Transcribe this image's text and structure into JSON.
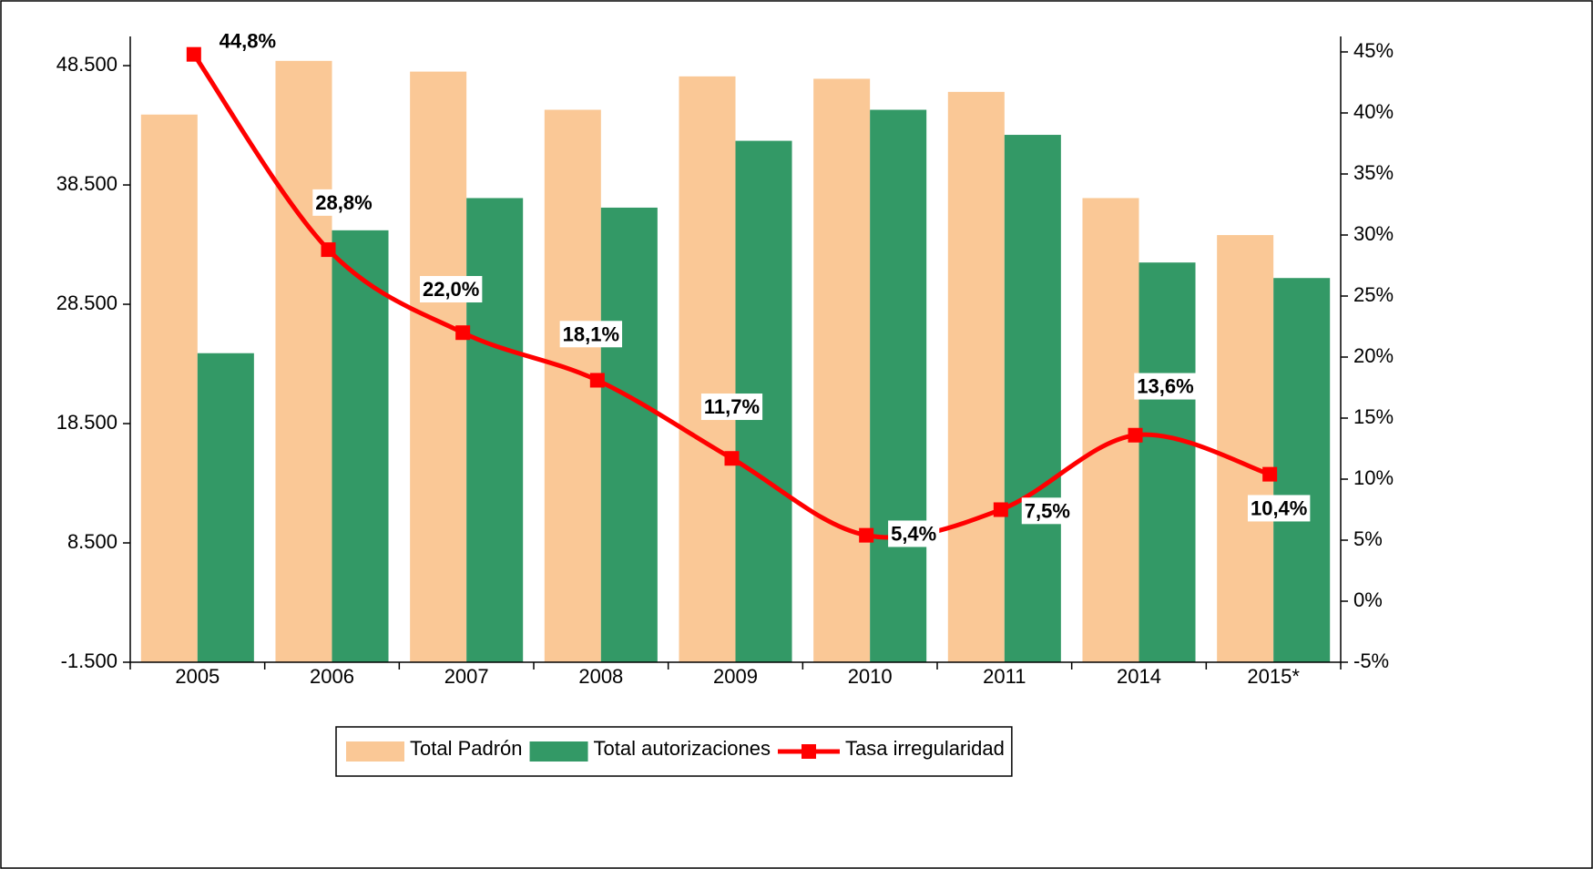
{
  "chart_data": {
    "type": "bar",
    "categories": [
      "2005",
      "2006",
      "2007",
      "2008",
      "2009",
      "2010",
      "2011",
      "2014",
      "2015*"
    ],
    "series": [
      {
        "name": "Total Padrón",
        "type": "bar",
        "color": "#fac896",
        "values": [
          44400,
          48900,
          48000,
          44800,
          47600,
          47400,
          46300,
          37400,
          34300
        ]
      },
      {
        "name": "Total autorizaciones",
        "type": "bar",
        "color": "#339966",
        "values": [
          24400,
          34700,
          37400,
          36600,
          42200,
          44800,
          42700,
          32000,
          30700
        ]
      },
      {
        "name": "Tasa irregularidad",
        "type": "line",
        "axis": "y2",
        "color": "#ff0000",
        "values": [
          44.8,
          28.8,
          22.0,
          18.1,
          11.7,
          5.4,
          7.5,
          13.6,
          10.4
        ],
        "value_labels": [
          "44,8%",
          "28,8%",
          "22,0%",
          "18,1%",
          "11,7%",
          "5,4%",
          "7,5%",
          "13,6%",
          "10,4%"
        ]
      }
    ],
    "ylim": [
      -1500,
      49650
    ],
    "yticks": [
      {
        "value": -1500,
        "label": "-1.500"
      },
      {
        "value": 8500,
        "label": "8.500"
      },
      {
        "value": 18500,
        "label": "18.500"
      },
      {
        "value": 28500,
        "label": "28.500"
      },
      {
        "value": 38500,
        "label": "38.500"
      },
      {
        "value": 48500,
        "label": "48.500"
      }
    ],
    "y2lim": [
      -5,
      45
    ],
    "y2ticks": [
      {
        "value": -5,
        "label": "-5%"
      },
      {
        "value": 0,
        "label": "0%"
      },
      {
        "value": 5,
        "label": "5%"
      },
      {
        "value": 10,
        "label": "10%"
      },
      {
        "value": 15,
        "label": "15%"
      },
      {
        "value": 20,
        "label": "20%"
      },
      {
        "value": 25,
        "label": "25%"
      },
      {
        "value": 30,
        "label": "30%"
      },
      {
        "value": 35,
        "label": "35%"
      },
      {
        "value": 40,
        "label": "40%"
      },
      {
        "value": 45,
        "label": "45%"
      }
    ],
    "grid": false,
    "legend": "bottom"
  }
}
